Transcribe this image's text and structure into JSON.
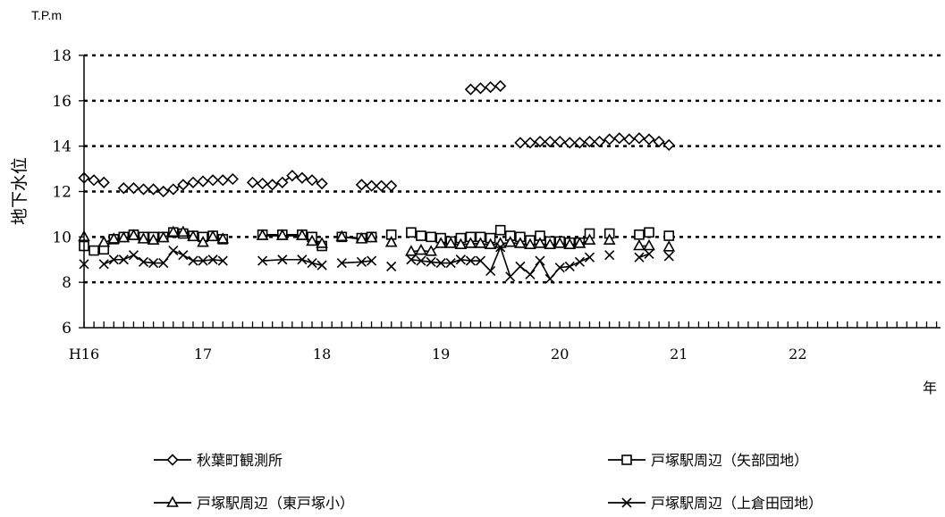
{
  "chart_data": {
    "type": "line",
    "unit": "T.P.m",
    "ylabel": "地下水位",
    "xlabel": "年",
    "ylim": [
      6,
      18
    ],
    "y_ticks": [
      "6",
      "8",
      "10",
      "12",
      "14",
      "16",
      "18"
    ],
    "xlim": [
      16,
      23.2
    ],
    "x_ticks": [
      {
        "v": 16,
        "label": "H16"
      },
      {
        "v": 17,
        "label": "17"
      },
      {
        "v": 18,
        "label": "18"
      },
      {
        "v": 19,
        "label": "19"
      },
      {
        "v": 20,
        "label": "20"
      },
      {
        "v": 21,
        "label": "21"
      },
      {
        "v": 22,
        "label": "22"
      }
    ],
    "grid": "horizontal dotted",
    "legend": "bottom",
    "series": [
      {
        "name": "秋葉町観測所",
        "marker": "diamond",
        "segments": [
          [
            [
              16.0,
              12.6
            ],
            [
              16.083,
              12.5
            ],
            [
              16.167,
              12.4
            ]
          ],
          [
            [
              16.333,
              12.15
            ],
            [
              16.417,
              12.15
            ],
            [
              16.5,
              12.1
            ],
            [
              16.583,
              12.1
            ],
            [
              16.667,
              12.0
            ],
            [
              16.75,
              12.1
            ],
            [
              16.833,
              12.3
            ],
            [
              16.917,
              12.4
            ],
            [
              17.0,
              12.45
            ],
            [
              17.083,
              12.5
            ],
            [
              17.167,
              12.5
            ],
            [
              17.25,
              12.55
            ]
          ],
          [
            [
              17.417,
              12.4
            ],
            [
              17.5,
              12.35
            ],
            [
              17.583,
              12.3
            ],
            [
              17.667,
              12.4
            ],
            [
              17.75,
              12.7
            ],
            [
              17.833,
              12.6
            ],
            [
              17.917,
              12.5
            ],
            [
              18.0,
              12.35
            ]
          ],
          [
            [
              18.333,
              12.3
            ],
            [
              18.417,
              12.25
            ],
            [
              18.5,
              12.25
            ],
            [
              18.583,
              12.25
            ]
          ],
          [
            [
              19.25,
              16.5
            ],
            [
              19.333,
              16.55
            ],
            [
              19.417,
              16.6
            ],
            [
              19.5,
              16.65
            ]
          ],
          [
            [
              19.667,
              14.15
            ],
            [
              19.75,
              14.15
            ],
            [
              19.833,
              14.2
            ],
            [
              19.917,
              14.2
            ],
            [
              20.0,
              14.2
            ],
            [
              20.083,
              14.15
            ],
            [
              20.167,
              14.15
            ],
            [
              20.25,
              14.2
            ],
            [
              20.333,
              14.2
            ],
            [
              20.417,
              14.3
            ],
            [
              20.5,
              14.35
            ],
            [
              20.583,
              14.3
            ],
            [
              20.667,
              14.35
            ],
            [
              20.75,
              14.3
            ],
            [
              20.833,
              14.2
            ],
            [
              20.917,
              14.05
            ]
          ]
        ]
      },
      {
        "name": "戸塚駅周辺（矢部団地）",
        "marker": "square",
        "segments": [
          [
            [
              16.0,
              9.6
            ],
            [
              16.083,
              9.4
            ],
            [
              16.167,
              9.45
            ],
            [
              16.25,
              9.9
            ],
            [
              16.333,
              10.0
            ],
            [
              16.417,
              10.1
            ],
            [
              16.5,
              10.0
            ],
            [
              16.583,
              10.0
            ],
            [
              16.667,
              10.0
            ],
            [
              16.75,
              10.2
            ],
            [
              16.833,
              10.15
            ],
            [
              16.917,
              10.05
            ],
            [
              17.0,
              10.0
            ],
            [
              17.083,
              10.05
            ],
            [
              17.167,
              9.9
            ]
          ],
          [
            [
              17.5,
              10.1
            ],
            [
              17.667,
              10.1
            ],
            [
              17.833,
              10.1
            ],
            [
              17.917,
              10.0
            ],
            [
              18.0,
              9.6
            ]
          ],
          [
            [
              18.167,
              10.0
            ],
            [
              18.333,
              9.95
            ],
            [
              18.417,
              10.0
            ]
          ],
          [
            [
              18.583,
              10.1
            ]
          ],
          [
            [
              18.75,
              10.2
            ],
            [
              18.833,
              10.05
            ],
            [
              18.917,
              10.0
            ],
            [
              19.0,
              9.95
            ],
            [
              19.083,
              9.8
            ],
            [
              19.167,
              9.95
            ],
            [
              19.25,
              10.0
            ],
            [
              19.333,
              10.0
            ],
            [
              19.417,
              9.95
            ],
            [
              19.5,
              10.3
            ],
            [
              19.583,
              10.05
            ],
            [
              19.667,
              10.0
            ],
            [
              19.75,
              9.85
            ],
            [
              19.833,
              10.05
            ],
            [
              19.917,
              9.8
            ],
            [
              20.0,
              9.8
            ],
            [
              20.083,
              9.75
            ],
            [
              20.167,
              9.75
            ],
            [
              20.25,
              10.15
            ]
          ],
          [
            [
              20.417,
              10.15
            ]
          ],
          [
            [
              20.667,
              10.1
            ],
            [
              20.75,
              10.2
            ]
          ],
          [
            [
              20.917,
              10.05
            ]
          ]
        ]
      },
      {
        "name": "戸塚駅周辺（東戸塚小）",
        "marker": "triangle",
        "segments": [
          [
            [
              16.0,
              10.0
            ]
          ],
          [
            [
              16.167,
              9.75
            ],
            [
              16.25,
              9.9
            ],
            [
              16.333,
              9.95
            ],
            [
              16.417,
              10.05
            ],
            [
              16.5,
              9.9
            ],
            [
              16.583,
              9.85
            ],
            [
              16.667,
              9.95
            ],
            [
              16.75,
              10.2
            ],
            [
              16.833,
              10.2
            ],
            [
              16.917,
              10.0
            ],
            [
              17.0,
              9.75
            ],
            [
              17.083,
              10.0
            ],
            [
              17.167,
              9.9
            ]
          ],
          [
            [
              17.5,
              10.05
            ],
            [
              17.667,
              10.05
            ],
            [
              17.833,
              10.05
            ],
            [
              17.917,
              9.8
            ],
            [
              18.0,
              9.7
            ]
          ],
          [
            [
              18.167,
              10.0
            ],
            [
              18.333,
              9.9
            ],
            [
              18.417,
              9.95
            ]
          ],
          [
            [
              18.583,
              9.75
            ]
          ],
          [
            [
              18.75,
              9.35
            ],
            [
              18.833,
              9.4
            ],
            [
              18.917,
              9.35
            ],
            [
              19.0,
              9.7
            ],
            [
              19.083,
              9.7
            ],
            [
              19.167,
              9.65
            ],
            [
              19.25,
              9.7
            ],
            [
              19.333,
              9.7
            ],
            [
              19.417,
              9.65
            ],
            [
              19.5,
              9.7
            ],
            [
              19.583,
              9.75
            ],
            [
              19.667,
              9.7
            ],
            [
              19.75,
              9.65
            ],
            [
              19.833,
              9.7
            ],
            [
              19.917,
              9.65
            ],
            [
              20.0,
              9.7
            ],
            [
              20.083,
              9.65
            ],
            [
              20.167,
              9.7
            ],
            [
              20.25,
              9.85
            ]
          ],
          [
            [
              20.417,
              9.85
            ]
          ],
          [
            [
              20.667,
              9.6
            ],
            [
              20.75,
              9.6
            ]
          ],
          [
            [
              20.917,
              9.55
            ]
          ]
        ]
      },
      {
        "name": "戸塚駅周辺（上倉田団地）",
        "marker": "cross",
        "segments": [
          [
            [
              16.0,
              8.8
            ]
          ],
          [
            [
              16.167,
              8.8
            ],
            [
              16.25,
              9.0
            ],
            [
              16.333,
              9.0
            ],
            [
              16.417,
              9.2
            ],
            [
              16.5,
              8.9
            ],
            [
              16.583,
              8.85
            ],
            [
              16.667,
              8.85
            ],
            [
              16.75,
              9.4
            ],
            [
              16.833,
              9.2
            ],
            [
              16.917,
              8.95
            ],
            [
              17.0,
              8.95
            ],
            [
              17.083,
              9.0
            ],
            [
              17.167,
              8.95
            ]
          ],
          [
            [
              17.5,
              8.95
            ],
            [
              17.667,
              9.0
            ],
            [
              17.833,
              9.0
            ],
            [
              17.917,
              8.85
            ],
            [
              18.0,
              8.75
            ]
          ],
          [
            [
              18.167,
              8.85
            ],
            [
              18.333,
              8.9
            ],
            [
              18.417,
              8.95
            ]
          ],
          [
            [
              18.583,
              8.7
            ]
          ],
          [
            [
              18.75,
              9.0
            ],
            [
              18.833,
              8.95
            ],
            [
              18.917,
              8.9
            ],
            [
              19.0,
              8.85
            ],
            [
              19.083,
              8.85
            ],
            [
              19.167,
              9.0
            ],
            [
              19.25,
              8.95
            ],
            [
              19.333,
              8.95
            ],
            [
              19.417,
              8.5
            ],
            [
              19.5,
              9.55
            ],
            [
              19.583,
              8.25
            ],
            [
              19.667,
              8.7
            ],
            [
              19.75,
              8.35
            ],
            [
              19.833,
              8.95
            ],
            [
              19.917,
              8.15
            ],
            [
              20.0,
              8.65
            ],
            [
              20.083,
              8.7
            ],
            [
              20.167,
              8.9
            ],
            [
              20.25,
              9.1
            ]
          ],
          [
            [
              20.417,
              9.2
            ]
          ],
          [
            [
              20.667,
              9.1
            ],
            [
              20.75,
              9.25
            ]
          ],
          [
            [
              20.917,
              9.15
            ]
          ]
        ]
      }
    ]
  }
}
